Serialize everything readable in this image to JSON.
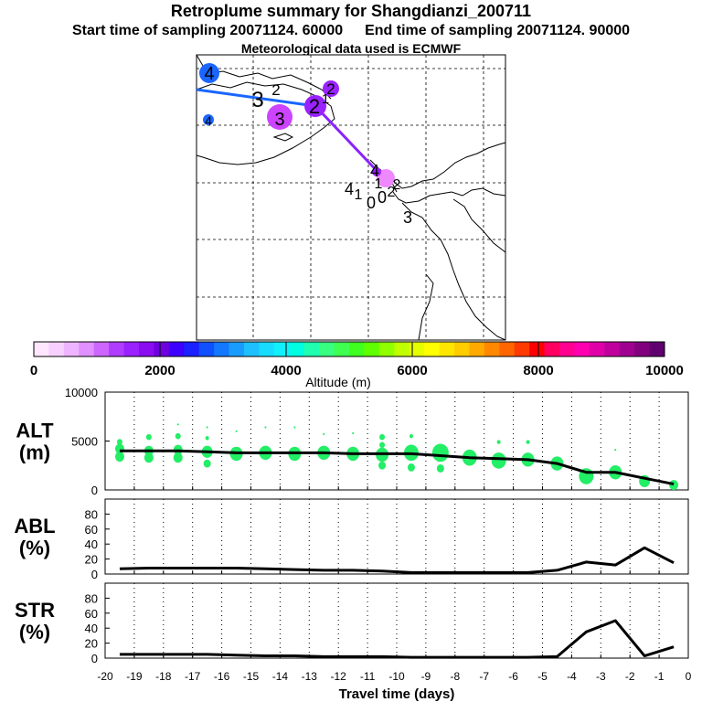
{
  "header": {
    "title": "Retroplume summary for Shangdianzi_200711",
    "start": "Start time of sampling 20071124. 60000",
    "end": "End time of sampling 20071124. 90000",
    "met": "Meteorological data used is ECMWF"
  },
  "colorbar": {
    "label": "Altitude (m)",
    "ticks": [
      "0",
      "2000",
      "4000",
      "6000",
      "8000",
      "10000"
    ],
    "colors": [
      "#ffe6ff",
      "#f7d0ff",
      "#eeb4ff",
      "#e090ff",
      "#cc66ff",
      "#b03cff",
      "#9a22ff",
      "#8a0cf0",
      "#6e00e0",
      "#3d00ff",
      "#1a20ff",
      "#1050ff",
      "#1478ff",
      "#1a9cff",
      "#1ec0ff",
      "#18dcff",
      "#10f0ff",
      "#00ffe0",
      "#20ffb0",
      "#38ff80",
      "#40ff50",
      "#40ff20",
      "#60ff00",
      "#90ff00",
      "#c0ff00",
      "#e6ff00",
      "#ffff00",
      "#ffe600",
      "#ffcc00",
      "#ffaa00",
      "#ff8800",
      "#ff6600",
      "#ff3a00",
      "#ff0000",
      "#ff0060",
      "#ff0090",
      "#ff00b0",
      "#e000a8",
      "#c0009c",
      "#a00090",
      "#80007e",
      "#60006e"
    ]
  },
  "map": {
    "labels": [
      "4",
      "2",
      "3",
      "4",
      "3",
      "2",
      "2",
      "1",
      "4",
      "1",
      "4",
      "1",
      "0",
      "0",
      "2",
      "2",
      "3"
    ]
  },
  "chart_data": [
    {
      "type": "line",
      "name": "ALT",
      "ylabel": "ALT (m)",
      "ylabel_lines": [
        "ALT",
        "(m)"
      ],
      "ylim": [
        0,
        10000
      ],
      "yticks": [
        "10000",
        "5000",
        "0"
      ],
      "x": [
        -19.5,
        -18.5,
        -17.5,
        -16.5,
        -15.5,
        -14.5,
        -13.5,
        -12.5,
        -11.5,
        -10.5,
        -9.5,
        -8.5,
        -7.5,
        -6.5,
        -5.5,
        -4.5,
        -3.5,
        -2.5,
        -1.5,
        -0.5
      ],
      "values": [
        4000,
        4000,
        4000,
        3900,
        3800,
        3800,
        3800,
        3800,
        3700,
        3700,
        3700,
        3500,
        3300,
        3200,
        3100,
        2700,
        1800,
        1800,
        1200,
        600
      ],
      "plume": [
        {
          "x": -19.5,
          "y": 4900,
          "r": 3
        },
        {
          "x": -19.5,
          "y": 4200,
          "r": 5
        },
        {
          "x": -19.5,
          "y": 3400,
          "r": 5
        },
        {
          "x": -18.5,
          "y": 5400,
          "r": 3
        },
        {
          "x": -18.5,
          "y": 4000,
          "r": 5
        },
        {
          "x": -18.5,
          "y": 3300,
          "r": 5
        },
        {
          "x": -17.5,
          "y": 6700,
          "r": 1
        },
        {
          "x": -17.5,
          "y": 5500,
          "r": 3
        },
        {
          "x": -17.5,
          "y": 4100,
          "r": 5
        },
        {
          "x": -17.5,
          "y": 3300,
          "r": 5
        },
        {
          "x": -16.5,
          "y": 6400,
          "r": 1
        },
        {
          "x": -16.5,
          "y": 5300,
          "r": 2
        },
        {
          "x": -16.5,
          "y": 3900,
          "r": 6
        },
        {
          "x": -16.5,
          "y": 2700,
          "r": 4
        },
        {
          "x": -15.5,
          "y": 6000,
          "r": 1
        },
        {
          "x": -15.5,
          "y": 3700,
          "r": 7
        },
        {
          "x": -14.5,
          "y": 6400,
          "r": 1
        },
        {
          "x": -14.5,
          "y": 3800,
          "r": 7
        },
        {
          "x": -13.5,
          "y": 6400,
          "r": 1
        },
        {
          "x": -13.5,
          "y": 3700,
          "r": 7
        },
        {
          "x": -12.5,
          "y": 5700,
          "r": 1
        },
        {
          "x": -12.5,
          "y": 3800,
          "r": 7
        },
        {
          "x": -11.5,
          "y": 5800,
          "r": 1
        },
        {
          "x": -11.5,
          "y": 3700,
          "r": 7
        },
        {
          "x": -10.5,
          "y": 5400,
          "r": 3
        },
        {
          "x": -10.5,
          "y": 4600,
          "r": 3
        },
        {
          "x": -10.5,
          "y": 3600,
          "r": 7
        },
        {
          "x": -10.5,
          "y": 2500,
          "r": 4
        },
        {
          "x": -9.5,
          "y": 5500,
          "r": 2
        },
        {
          "x": -9.5,
          "y": 3800,
          "r": 8
        },
        {
          "x": -9.5,
          "y": 2300,
          "r": 4
        },
        {
          "x": -8.5,
          "y": 3800,
          "r": 9
        },
        {
          "x": -8.5,
          "y": 2200,
          "r": 4
        },
        {
          "x": -7.5,
          "y": 3300,
          "r": 8
        },
        {
          "x": -6.5,
          "y": 4900,
          "r": 2
        },
        {
          "x": -6.5,
          "y": 3000,
          "r": 8
        },
        {
          "x": -5.5,
          "y": 4900,
          "r": 2
        },
        {
          "x": -5.5,
          "y": 3100,
          "r": 7
        },
        {
          "x": -4.5,
          "y": 2700,
          "r": 7
        },
        {
          "x": -3.5,
          "y": 1400,
          "r": 8
        },
        {
          "x": -2.5,
          "y": 4100,
          "r": 1
        },
        {
          "x": -2.5,
          "y": 1800,
          "r": 7
        },
        {
          "x": -1.5,
          "y": 900,
          "r": 6
        },
        {
          "x": -0.5,
          "y": 500,
          "r": 5
        }
      ]
    },
    {
      "type": "line",
      "name": "ABL",
      "ylabel": "ABL (%)",
      "ylabel_lines": [
        "ABL",
        "(%)"
      ],
      "ylim": [
        0,
        100
      ],
      "yticks": [
        "80",
        "60",
        "40",
        "20",
        "0"
      ],
      "x": [
        -19.5,
        -18.5,
        -17.5,
        -16.5,
        -15.5,
        -14.5,
        -13.5,
        -12.5,
        -11.5,
        -10.5,
        -9.5,
        -8.5,
        -7.5,
        -6.5,
        -5.5,
        -4.5,
        -3.5,
        -2.5,
        -1.5,
        -0.5
      ],
      "values": [
        7,
        8,
        8,
        8,
        8,
        7,
        6,
        5,
        5,
        4,
        2,
        2,
        2,
        2,
        2,
        5,
        16,
        12,
        35,
        15
      ]
    },
    {
      "type": "line",
      "name": "STR",
      "ylabel": "STR (%)",
      "ylabel_lines": [
        "STR",
        "(%)"
      ],
      "ylim": [
        0,
        100
      ],
      "yticks": [
        "80",
        "60",
        "40",
        "20",
        "0"
      ],
      "x": [
        -19.5,
        -18.5,
        -17.5,
        -16.5,
        -15.5,
        -14.5,
        -13.5,
        -12.5,
        -11.5,
        -10.5,
        -9.5,
        -8.5,
        -7.5,
        -6.5,
        -5.5,
        -4.5,
        -3.5,
        -2.5,
        -1.5,
        -0.5
      ],
      "values": [
        5,
        5,
        5,
        5,
        4,
        3,
        3,
        2,
        2,
        2,
        1,
        1,
        1,
        1,
        1,
        2,
        35,
        50,
        3,
        15
      ],
      "xlabel": "Travel time (days)",
      "xticks": [
        "-20",
        "-19",
        "-18",
        "-17",
        "-16",
        "-15",
        "-14",
        "-13",
        "-12",
        "-11",
        "-10",
        "-9",
        "-8",
        "-7",
        "-6",
        "-5",
        "-4",
        "-3",
        "-2",
        "-1",
        "0"
      ]
    }
  ],
  "colors": {
    "plume": "#22ee66",
    "line": "#000000",
    "track_blue": "#1a66ff",
    "track_purple": "#8a22ff"
  }
}
